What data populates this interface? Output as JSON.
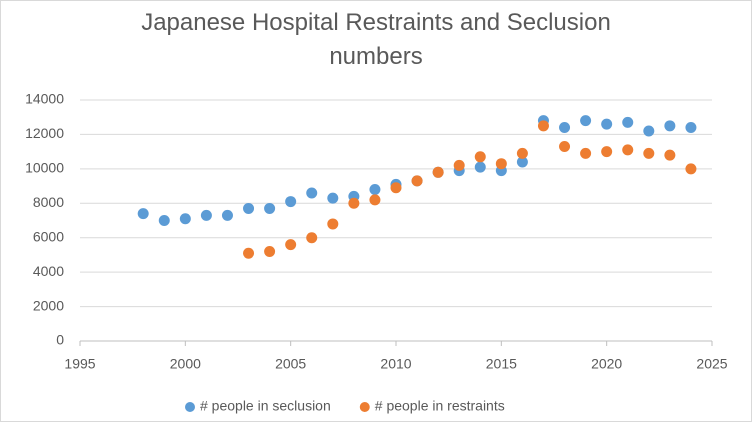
{
  "chart_data": {
    "type": "scatter",
    "title": "Japanese Hospital Restraints and Seclusion numbers",
    "xlim": [
      1995,
      2025
    ],
    "xticks": [
      1995,
      2000,
      2005,
      2010,
      2015,
      2020,
      2025
    ],
    "ylim": [
      0,
      14000
    ],
    "yticks": [
      0,
      2000,
      4000,
      6000,
      8000,
      10000,
      12000,
      14000
    ],
    "grid": true,
    "legend": "bottom",
    "series": [
      {
        "name": "# people in seclusion",
        "color": "#5b9bd5",
        "x": [
          1998,
          1999,
          2000,
          2001,
          2002,
          2003,
          2004,
          2005,
          2006,
          2007,
          2008,
          2009,
          2010,
          2011,
          2012,
          2013,
          2014,
          2015,
          2016,
          2017,
          2018,
          2019,
          2020,
          2021,
          2022,
          2023,
          2024
        ],
        "values": [
          7400,
          7000,
          7100,
          7300,
          7300,
          7700,
          7700,
          8100,
          8600,
          8300,
          8400,
          8800,
          9100,
          9300,
          9800,
          9900,
          10100,
          9900,
          10400,
          12800,
          12400,
          12800,
          12600,
          12700,
          12200,
          12500,
          12400
        ]
      },
      {
        "name": "# people in restraints",
        "color": "#ed7d31",
        "x": [
          2003,
          2004,
          2005,
          2006,
          2007,
          2008,
          2009,
          2010,
          2011,
          2012,
          2013,
          2014,
          2015,
          2016,
          2017,
          2018,
          2019,
          2020,
          2021,
          2022,
          2023,
          2024
        ],
        "values": [
          5100,
          5200,
          5600,
          6000,
          6800,
          8000,
          8200,
          8900,
          9300,
          9800,
          10200,
          10700,
          10300,
          10900,
          12500,
          11300,
          10900,
          11000,
          11100,
          10900,
          10800,
          10000
        ]
      }
    ]
  }
}
